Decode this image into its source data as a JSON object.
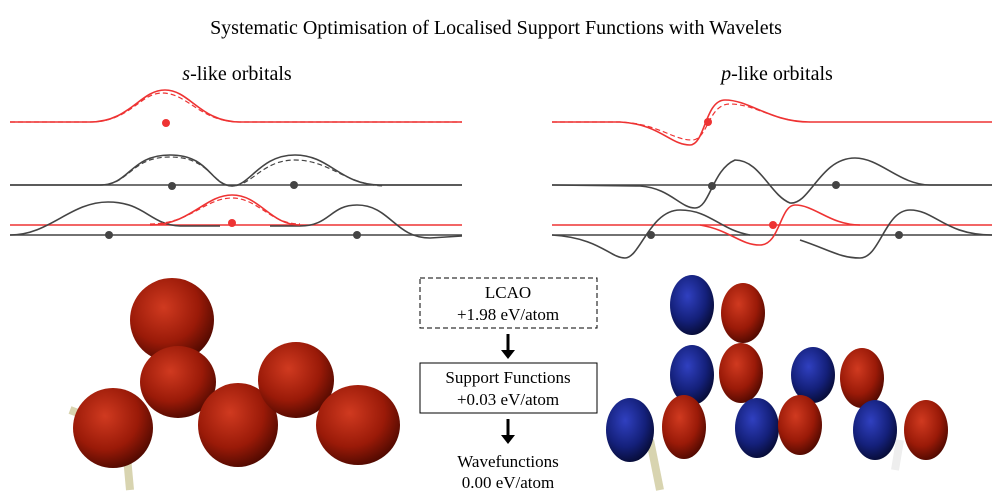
{
  "header": {
    "title": "Systematic Optimisation of Localised Support Functions with Wavelets"
  },
  "panels": [
    {
      "italic": "s",
      "label": "-like orbitals"
    },
    {
      "italic": "p",
      "label": "-like orbitals"
    }
  ],
  "flow": [
    {
      "name": "LCAO",
      "energy": "+1.98 eV/atom"
    },
    {
      "name": "Support Functions",
      "energy": "+0.03 eV/atom"
    },
    {
      "name": "Wavefunctions",
      "energy": "0.00 eV/atom"
    }
  ]
}
